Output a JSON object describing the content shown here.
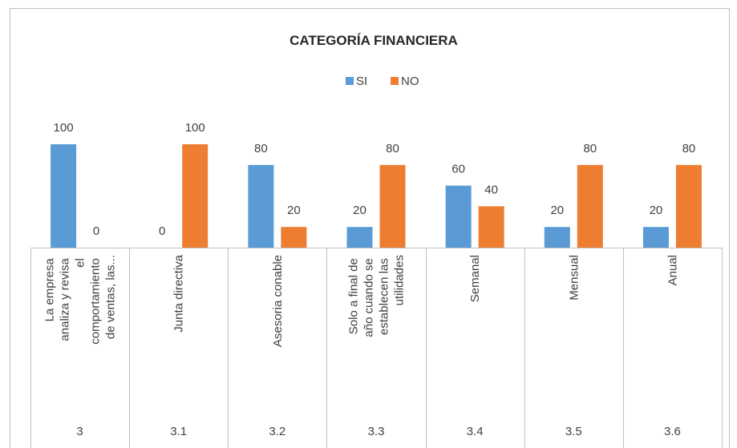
{
  "chart_data": {
    "type": "bar",
    "title": "CATEGORÍA FINANCIERA",
    "categories": [
      "La empresa analiza y revisa el comportamiento de ventas, las...",
      "Junta directiva",
      "Asesoria conable",
      "Solo a final de año cuando se establecen las utilidades",
      "Semanal",
      "Mensual",
      "Anual"
    ],
    "groups": [
      "3",
      "3.1",
      "3.2",
      "3.3",
      "3.4",
      "3.5",
      "3.6"
    ],
    "series": [
      {
        "name": "SI",
        "color": "#5b9bd5",
        "values": [
          100,
          0,
          80,
          20,
          60,
          20,
          20
        ]
      },
      {
        "name": "NO",
        "color": "#ed7d31",
        "values": [
          0,
          100,
          20,
          80,
          40,
          80,
          80
        ]
      }
    ],
    "legend": "top"
  }
}
